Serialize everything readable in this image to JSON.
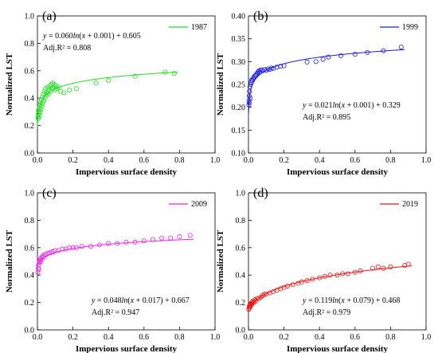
{
  "chart_data": [
    {
      "type": "scatter",
      "panel_label": "(a)",
      "color": "#22dd22",
      "xlabel": "Impervious surface density",
      "ylabel": "Normalized LST",
      "xlim": [
        0.0,
        1.0
      ],
      "ylim": [
        0.0,
        1.0
      ],
      "xticks": [
        "0.0",
        "0.2",
        "0.4",
        "0.6",
        "0.8",
        "1.0"
      ],
      "yticks": [
        "0.0",
        "0.2",
        "0.4",
        "0.6",
        "0.8",
        "1.0"
      ],
      "legend": "1987",
      "legend_position": "top-right",
      "equation_prefix": "y",
      "equation_mid": " = 0.060",
      "equation_ln": "ln",
      "equation_x": "x",
      "equation_rest": " + 0.001) + 0.605",
      "r2_text": "Adj.R² = 0.808",
      "annotation_position": "top-left",
      "fit": {
        "a": 0.06,
        "b": 0.001,
        "c": 0.605
      },
      "points": [
        [
          0.003,
          0.26
        ],
        [
          0.004,
          0.28
        ],
        [
          0.005,
          0.25
        ],
        [
          0.006,
          0.31
        ],
        [
          0.008,
          0.29
        ],
        [
          0.01,
          0.33
        ],
        [
          0.012,
          0.27
        ],
        [
          0.014,
          0.35
        ],
        [
          0.016,
          0.3
        ],
        [
          0.018,
          0.37
        ],
        [
          0.02,
          0.32
        ],
        [
          0.022,
          0.39
        ],
        [
          0.025,
          0.34
        ],
        [
          0.028,
          0.41
        ],
        [
          0.03,
          0.36
        ],
        [
          0.033,
          0.43
        ],
        [
          0.036,
          0.38
        ],
        [
          0.04,
          0.45
        ],
        [
          0.043,
          0.4
        ],
        [
          0.046,
          0.47
        ],
        [
          0.05,
          0.42
        ],
        [
          0.054,
          0.44
        ],
        [
          0.058,
          0.48
        ],
        [
          0.062,
          0.43
        ],
        [
          0.066,
          0.46
        ],
        [
          0.07,
          0.49
        ],
        [
          0.074,
          0.45
        ],
        [
          0.078,
          0.5
        ],
        [
          0.082,
          0.47
        ],
        [
          0.086,
          0.51
        ],
        [
          0.09,
          0.48
        ],
        [
          0.095,
          0.5
        ],
        [
          0.1,
          0.46
        ],
        [
          0.105,
          0.49
        ],
        [
          0.11,
          0.47
        ],
        [
          0.12,
          0.48
        ],
        [
          0.13,
          0.45
        ],
        [
          0.15,
          0.44
        ],
        [
          0.18,
          0.46
        ],
        [
          0.22,
          0.47
        ],
        [
          0.33,
          0.51
        ],
        [
          0.4,
          0.53
        ],
        [
          0.55,
          0.56
        ],
        [
          0.72,
          0.59
        ],
        [
          0.77,
          0.58
        ]
      ]
    },
    {
      "type": "scatter",
      "panel_label": "(b)",
      "color": "#1c1cdd",
      "xlabel": "Impervious surface density",
      "ylabel": "Normalized LST",
      "xlim": [
        0.0,
        1.0
      ],
      "ylim": [
        0.1,
        0.4
      ],
      "xticks": [
        "0.0",
        "0.2",
        "0.4",
        "0.6",
        "0.8",
        "1.0"
      ],
      "yticks": [
        "0.10",
        "0.15",
        "0.20",
        "0.25",
        "0.30",
        "0.35",
        "0.40"
      ],
      "legend": "1999",
      "legend_position": "top-right",
      "equation_prefix": "y",
      "equation_mid": " = 0.021",
      "equation_ln": "ln",
      "equation_x": "x",
      "equation_rest": " + 0.001) + 0.329",
      "r2_text": "Adj.R² = 0.895",
      "annotation_position": "center-right",
      "fit": {
        "a": 0.021,
        "b": 0.001,
        "c": 0.329
      },
      "points": [
        [
          0.002,
          0.205
        ],
        [
          0.003,
          0.215
        ],
        [
          0.004,
          0.225
        ],
        [
          0.005,
          0.21
        ],
        [
          0.006,
          0.235
        ],
        [
          0.008,
          0.245
        ],
        [
          0.01,
          0.22
        ],
        [
          0.012,
          0.25
        ],
        [
          0.015,
          0.255
        ],
        [
          0.018,
          0.26
        ],
        [
          0.022,
          0.258
        ],
        [
          0.026,
          0.262
        ],
        [
          0.03,
          0.265
        ],
        [
          0.035,
          0.268
        ],
        [
          0.04,
          0.27
        ],
        [
          0.045,
          0.272
        ],
        [
          0.05,
          0.275
        ],
        [
          0.055,
          0.278
        ],
        [
          0.06,
          0.28
        ],
        [
          0.065,
          0.277
        ],
        [
          0.07,
          0.282
        ],
        [
          0.08,
          0.28
        ],
        [
          0.09,
          0.283
        ],
        [
          0.1,
          0.281
        ],
        [
          0.11,
          0.284
        ],
        [
          0.12,
          0.283
        ],
        [
          0.13,
          0.286
        ],
        [
          0.14,
          0.285
        ],
        [
          0.16,
          0.288
        ],
        [
          0.18,
          0.29
        ],
        [
          0.2,
          0.291
        ],
        [
          0.33,
          0.299
        ],
        [
          0.38,
          0.3
        ],
        [
          0.42,
          0.305
        ],
        [
          0.45,
          0.31
        ],
        [
          0.52,
          0.313
        ],
        [
          0.6,
          0.316
        ],
        [
          0.67,
          0.32
        ],
        [
          0.76,
          0.324
        ],
        [
          0.86,
          0.332
        ]
      ]
    },
    {
      "type": "scatter",
      "panel_label": "(c)",
      "color": "#ee22ee",
      "xlabel": "Impervious surface density",
      "ylabel": "Normalized LST",
      "xlim": [
        0.0,
        1.0
      ],
      "ylim": [
        0.0,
        1.0
      ],
      "xticks": [
        "0.0",
        "0.2",
        "0.4",
        "0.6",
        "0.8",
        "1.0"
      ],
      "yticks": [
        "0.0",
        "0.2",
        "0.4",
        "0.6",
        "0.8",
        "1.0"
      ],
      "legend": "2009",
      "legend_position": "top-right",
      "equation_prefix": "y",
      "equation_mid": " = 0.048",
      "equation_ln": "ln",
      "equation_x": "x",
      "equation_rest": " + 0.017) + 0.667",
      "r2_text": "Adj.R² = 0.947",
      "annotation_position": "bottom-right",
      "fit": {
        "a": 0.048,
        "b": 0.017,
        "c": 0.667
      },
      "points": [
        [
          0.002,
          0.42
        ],
        [
          0.004,
          0.45
        ],
        [
          0.006,
          0.47
        ],
        [
          0.008,
          0.44
        ],
        [
          0.01,
          0.49
        ],
        [
          0.012,
          0.5
        ],
        [
          0.015,
          0.51
        ],
        [
          0.018,
          0.52
        ],
        [
          0.02,
          0.5
        ],
        [
          0.025,
          0.53
        ],
        [
          0.03,
          0.54
        ],
        [
          0.035,
          0.53
        ],
        [
          0.04,
          0.55
        ],
        [
          0.05,
          0.55
        ],
        [
          0.06,
          0.56
        ],
        [
          0.07,
          0.56
        ],
        [
          0.08,
          0.57
        ],
        [
          0.09,
          0.57
        ],
        [
          0.1,
          0.58
        ],
        [
          0.12,
          0.58
        ],
        [
          0.14,
          0.59
        ],
        [
          0.16,
          0.59
        ],
        [
          0.18,
          0.6
        ],
        [
          0.2,
          0.6
        ],
        [
          0.22,
          0.6
        ],
        [
          0.25,
          0.61
        ],
        [
          0.3,
          0.61
        ],
        [
          0.35,
          0.62
        ],
        [
          0.4,
          0.63
        ],
        [
          0.45,
          0.63
        ],
        [
          0.5,
          0.64
        ],
        [
          0.55,
          0.64
        ],
        [
          0.6,
          0.65
        ],
        [
          0.65,
          0.66
        ],
        [
          0.7,
          0.67
        ],
        [
          0.75,
          0.67
        ],
        [
          0.8,
          0.68
        ],
        [
          0.86,
          0.69
        ]
      ]
    },
    {
      "type": "scatter",
      "panel_label": "(d)",
      "color": "#ee1111",
      "xlabel": "Impervious surface density",
      "ylabel": "Normalized LST",
      "xlim": [
        0.0,
        1.0
      ],
      "ylim": [
        0.0,
        1.0
      ],
      "xticks": [
        "0.0",
        "0.2",
        "0.4",
        "0.6",
        "0.8",
        "1.0"
      ],
      "yticks": [
        "0.0",
        "0.2",
        "0.4",
        "0.6",
        "0.8",
        "1.0"
      ],
      "legend": "2019",
      "legend_position": "top-right",
      "equation_prefix": "y",
      "equation_mid": " = 0.119",
      "equation_ln": "ln",
      "equation_x": "x",
      "equation_rest": " + 0.079) + 0.468",
      "r2_text": "Adj.R² = 0.979",
      "annotation_position": "bottom-right",
      "fit": {
        "a": 0.119,
        "b": 0.079,
        "c": 0.468
      },
      "points": [
        [
          0.002,
          0.15
        ],
        [
          0.004,
          0.17
        ],
        [
          0.006,
          0.16
        ],
        [
          0.008,
          0.18
        ],
        [
          0.01,
          0.17
        ],
        [
          0.012,
          0.19
        ],
        [
          0.015,
          0.18
        ],
        [
          0.018,
          0.2
        ],
        [
          0.02,
          0.19
        ],
        [
          0.025,
          0.21
        ],
        [
          0.03,
          0.2
        ],
        [
          0.035,
          0.22
        ],
        [
          0.04,
          0.21
        ],
        [
          0.05,
          0.23
        ],
        [
          0.06,
          0.23
        ],
        [
          0.07,
          0.24
        ],
        [
          0.08,
          0.25
        ],
        [
          0.09,
          0.26
        ],
        [
          0.1,
          0.26
        ],
        [
          0.12,
          0.27
        ],
        [
          0.14,
          0.28
        ],
        [
          0.16,
          0.29
        ],
        [
          0.18,
          0.3
        ],
        [
          0.2,
          0.31
        ],
        [
          0.22,
          0.32
        ],
        [
          0.25,
          0.33
        ],
        [
          0.28,
          0.34
        ],
        [
          0.3,
          0.35
        ],
        [
          0.33,
          0.36
        ],
        [
          0.36,
          0.37
        ],
        [
          0.4,
          0.38
        ],
        [
          0.43,
          0.39
        ],
        [
          0.46,
          0.4
        ],
        [
          0.5,
          0.4
        ],
        [
          0.53,
          0.41
        ],
        [
          0.56,
          0.41
        ],
        [
          0.6,
          0.42
        ],
        [
          0.63,
          0.43
        ],
        [
          0.7,
          0.45
        ],
        [
          0.73,
          0.46
        ],
        [
          0.76,
          0.45
        ],
        [
          0.8,
          0.46
        ],
        [
          0.88,
          0.47
        ],
        [
          0.9,
          0.48
        ]
      ]
    }
  ]
}
